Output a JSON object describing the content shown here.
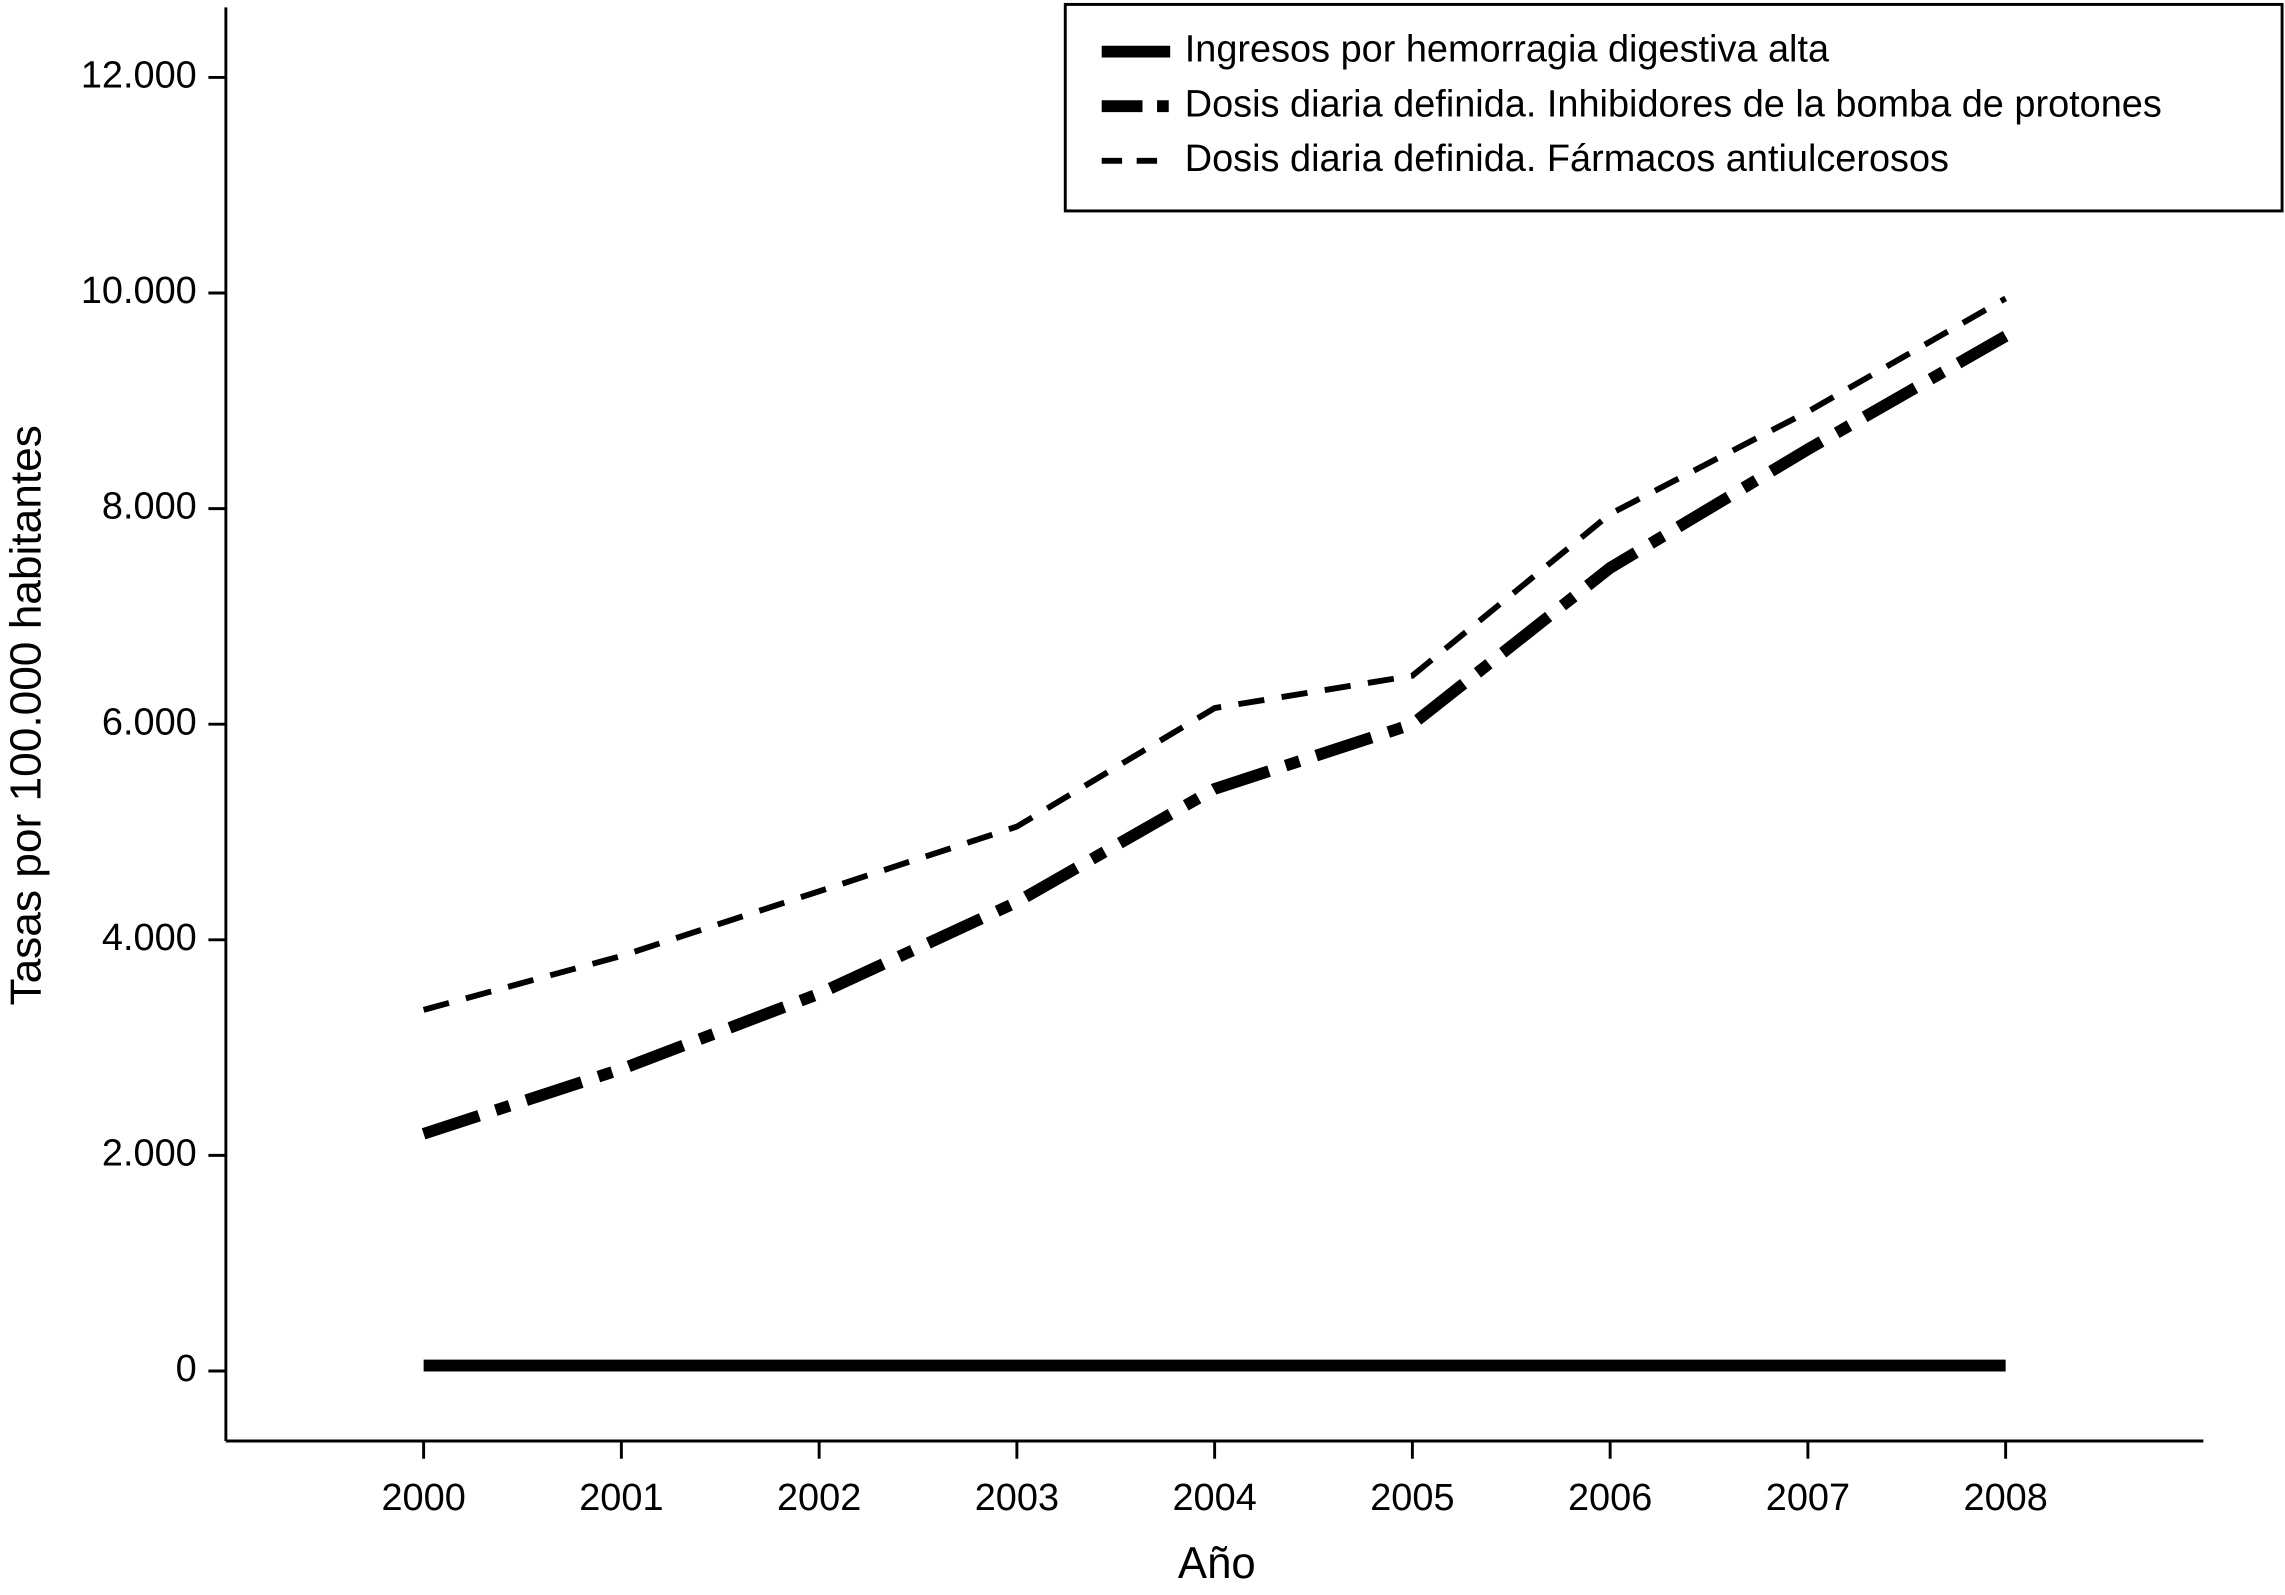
{
  "chart_data": {
    "type": "line",
    "xlabel": "Año",
    "ylabel": "Tasas por 100.000 habitantes",
    "x": [
      2000,
      2001,
      2002,
      2003,
      2004,
      2005,
      2006,
      2007,
      2008
    ],
    "xlim": [
      1999,
      2009
    ],
    "xticks": [
      2000,
      2001,
      2002,
      2003,
      2004,
      2005,
      2006,
      2007,
      2008
    ],
    "ylim": [
      -650,
      12650
    ],
    "yticks": [
      0,
      {
        "value": 2000,
        "label": "2.000"
      },
      {
        "value": 4000,
        "label": "4.000"
      },
      {
        "value": 6000,
        "label": "6.000"
      },
      {
        "value": 8000,
        "label": "8.000"
      },
      {
        "value": 10000,
        "label": "10.000"
      },
      {
        "value": 12000,
        "label": "12.000"
      }
    ],
    "grid": false,
    "legend": "upper right",
    "series": [
      {
        "name": "Ingresos por hemorragia digestiva alta",
        "color": "#000000",
        "style": "solid",
        "values": [
          50,
          50,
          50,
          50,
          50,
          50,
          50,
          50,
          50
        ]
      },
      {
        "name": "Dosis diaria definida. Inhibidores de la bomba de protones",
        "color": "#000000",
        "style": "dashdot",
        "values": [
          2200,
          2800,
          3500,
          4350,
          5400,
          6000,
          7450,
          8550,
          9600
        ]
      },
      {
        "name": "Dosis diaria definida. Fármacos antiulcerosos",
        "color": "#000000",
        "style": "dashed",
        "values": [
          3350,
          3850,
          4450,
          5050,
          6150,
          6450,
          7950,
          8900,
          9950
        ]
      }
    ]
  }
}
